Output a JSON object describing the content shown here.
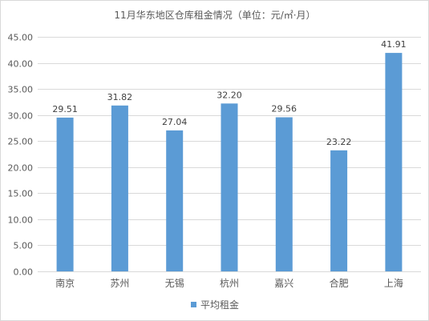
{
  "chart_data": {
    "type": "bar",
    "title": "11月华东地区仓库租金情况（单位：元/㎡·月）",
    "categories": [
      "南京",
      "苏州",
      "无锡",
      "杭州",
      "嘉兴",
      "合肥",
      "上海"
    ],
    "series": [
      {
        "name": "平均租金",
        "values": [
          29.51,
          31.82,
          27.04,
          32.2,
          29.56,
          23.22,
          41.91
        ],
        "data_labels": [
          "29.51",
          "31.82",
          "27.04",
          "32.20",
          "29.56",
          "23.22",
          "41.91"
        ],
        "color": "#5b9bd5"
      }
    ],
    "ylim": [
      0,
      45
    ],
    "y_ticks": [
      "0.00",
      "5.00",
      "10.00",
      "15.00",
      "20.00",
      "25.00",
      "30.00",
      "35.00",
      "40.00",
      "45.00"
    ],
    "grid": true,
    "legend_position": "bottom",
    "gridline_color": "#d9d9d9",
    "text_color": "#595959"
  }
}
